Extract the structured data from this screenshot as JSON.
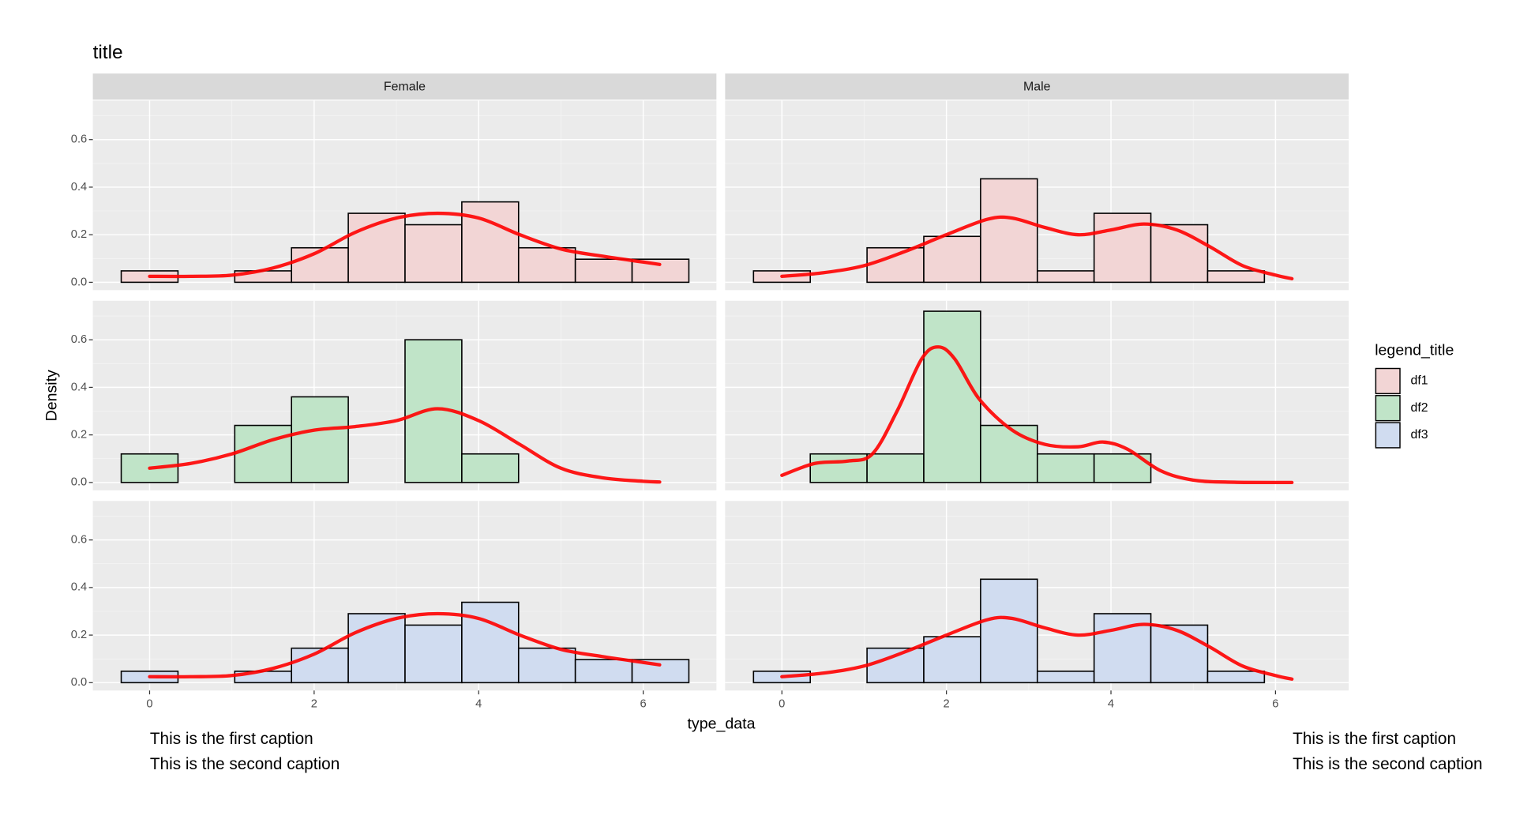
{
  "chart_data": {
    "type": "histogram",
    "title": "title",
    "xlabel": "type_data",
    "ylabel": "Density",
    "legend_title": "legend_title",
    "captions": [
      "This is the first caption",
      "This is the second caption"
    ],
    "facets": [
      "Female",
      "Male"
    ],
    "bins": [
      -0.345,
      0.345,
      1.035,
      1.725,
      2.415,
      3.105,
      3.795,
      4.485,
      5.175,
      5.865,
      6.555
    ],
    "xlim": [
      -0.69,
      6.89
    ],
    "ylim": [
      -0.033,
      0.764
    ],
    "xticks": [
      0,
      2,
      4,
      6
    ],
    "yticks": [
      {
        "value": 0,
        "label": "0.0"
      },
      0.2,
      0.4,
      0.6
    ],
    "grid": true,
    "density_color": "#ff0000",
    "series": [
      {
        "name": "df1",
        "color": "#f2d5d5",
        "panels": [
          {
            "values": [
              0.048,
              0,
              0.048,
              0.145,
              0.29,
              0.242,
              0.338,
              0.145,
              0.097,
              0.097
            ],
            "density_x": [
              0,
              0.5,
              1,
              1.5,
              2,
              2.5,
              3,
              3.5,
              4,
              4.5,
              5,
              5.5,
              6,
              6.2
            ],
            "density_y": [
              0.025,
              0.025,
              0.03,
              0.06,
              0.12,
              0.21,
              0.27,
              0.29,
              0.27,
              0.2,
              0.14,
              0.11,
              0.085,
              0.075
            ]
          },
          {
            "values": [
              0.048,
              0,
              0.145,
              0.193,
              0.435,
              0.048,
              0.29,
              0.242,
              0.048,
              0
            ],
            "density_x": [
              0,
              0.5,
              1,
              1.5,
              2,
              2.5,
              2.8,
              3.2,
              3.6,
              4,
              4.4,
              4.8,
              5.2,
              5.6,
              6,
              6.2
            ],
            "density_y": [
              0.025,
              0.04,
              0.07,
              0.13,
              0.2,
              0.265,
              0.27,
              0.23,
              0.2,
              0.22,
              0.245,
              0.22,
              0.15,
              0.07,
              0.03,
              0.015
            ]
          }
        ]
      },
      {
        "name": "df2",
        "color": "#c0e4c8",
        "panels": [
          {
            "values": [
              0.12,
              0,
              0.24,
              0.36,
              0,
              0.6,
              0.12,
              0,
              0,
              0
            ],
            "density_x": [
              0,
              0.5,
              1,
              1.5,
              2,
              2.5,
              3,
              3.5,
              4,
              4.5,
              5,
              5.5,
              6,
              6.2
            ],
            "density_y": [
              0.06,
              0.08,
              0.12,
              0.18,
              0.22,
              0.235,
              0.26,
              0.31,
              0.26,
              0.16,
              0.06,
              0.02,
              0.005,
              0.002
            ]
          },
          {
            "values": [
              0,
              0.12,
              0.12,
              0.72,
              0.24,
              0.12,
              0.12,
              0,
              0,
              0
            ],
            "density_x": [
              0,
              0.4,
              0.8,
              1.1,
              1.4,
              1.7,
              1.9,
              2.1,
              2.4,
              2.8,
              3.2,
              3.6,
              3.9,
              4.2,
              4.6,
              5,
              5.5,
              6.2
            ],
            "density_y": [
              0.03,
              0.08,
              0.09,
              0.12,
              0.3,
              0.52,
              0.57,
              0.52,
              0.35,
              0.22,
              0.16,
              0.15,
              0.17,
              0.14,
              0.05,
              0.01,
              0.001,
              0
            ]
          }
        ]
      },
      {
        "name": "df3",
        "color": "#d0dcf0",
        "panels": [
          {
            "values": [
              0.048,
              0,
              0.048,
              0.145,
              0.29,
              0.242,
              0.338,
              0.145,
              0.097,
              0.097
            ],
            "density_x": [
              0,
              0.5,
              1,
              1.5,
              2,
              2.5,
              3,
              3.5,
              4,
              4.5,
              5,
              5.5,
              6,
              6.2
            ],
            "density_y": [
              0.025,
              0.025,
              0.03,
              0.06,
              0.12,
              0.21,
              0.27,
              0.29,
              0.27,
              0.2,
              0.14,
              0.11,
              0.085,
              0.075
            ]
          },
          {
            "values": [
              0.048,
              0,
              0.145,
              0.193,
              0.435,
              0.048,
              0.29,
              0.242,
              0.048,
              0
            ],
            "density_x": [
              0,
              0.5,
              1,
              1.5,
              2,
              2.5,
              2.8,
              3.2,
              3.6,
              4,
              4.4,
              4.8,
              5.2,
              5.6,
              6,
              6.2
            ],
            "density_y": [
              0.025,
              0.04,
              0.07,
              0.13,
              0.2,
              0.265,
              0.27,
              0.23,
              0.2,
              0.22,
              0.245,
              0.22,
              0.15,
              0.07,
              0.03,
              0.015
            ]
          }
        ]
      }
    ]
  }
}
